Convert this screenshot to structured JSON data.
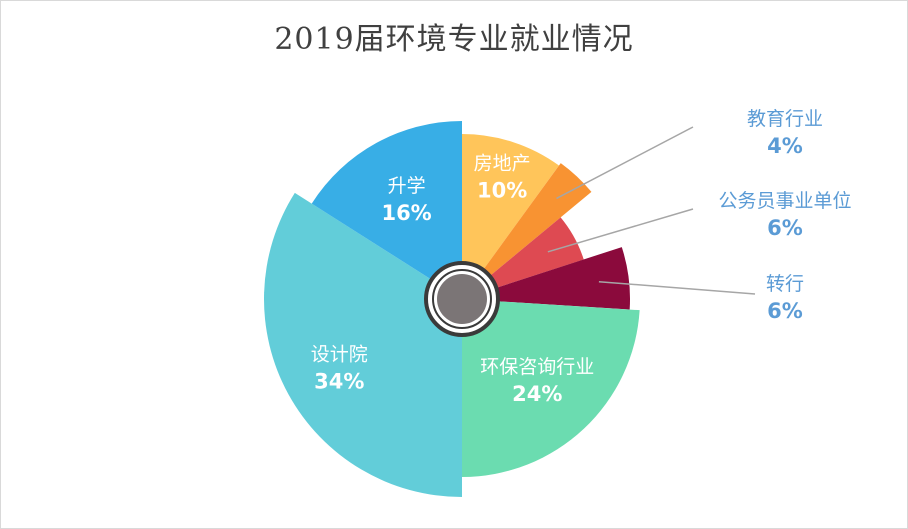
{
  "chart_data": {
    "type": "pie",
    "title": "2019届环境专业就业情况",
    "categories": [
      "房地产",
      "教育行业",
      "公务员事业单位",
      "转行",
      "环保咨询行业",
      "设计院",
      "升学"
    ],
    "values": [
      10,
      4,
      6,
      6,
      24,
      34,
      16
    ],
    "labels": [
      "10%",
      "4%",
      "6%",
      "6%",
      "24%",
      "34%",
      "16%"
    ],
    "colors": [
      "#ffc55a",
      "#f89332",
      "#de4a52",
      "#8b0a3c",
      "#6bdcb0",
      "#62cdd9",
      "#38aee6"
    ],
    "hub_color": "#7b7576",
    "legend": "none"
  }
}
